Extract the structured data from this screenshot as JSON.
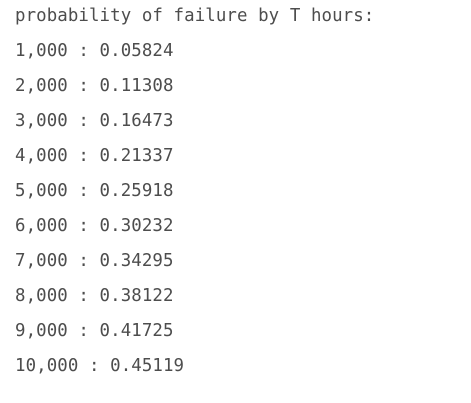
{
  "output": {
    "header": "probability of failure by T hours:",
    "lines": [
      "1,000 : 0.05824",
      "2,000 : 0.11308",
      "3,000 : 0.16473",
      "4,000 : 0.21337",
      "5,000 : 0.25918",
      "6,000 : 0.30232",
      "7,000 : 0.34295",
      "8,000 : 0.38122",
      "9,000 : 0.41725",
      "10,000 : 0.45119"
    ]
  }
}
